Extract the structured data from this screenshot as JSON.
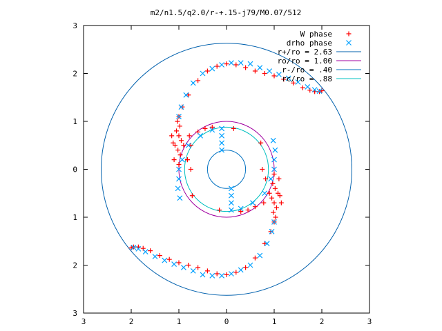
{
  "chart_data": {
    "type": "scatter",
    "title": "m2/n1.5/q2.0/r-+.15-j79/M0.07/512",
    "xlabel": "",
    "ylabel": "",
    "xlim": [
      -3,
      3
    ],
    "ylim": [
      -3,
      3
    ],
    "xticks": [
      -3,
      -2,
      -1,
      0,
      1,
      2,
      3
    ],
    "yticks": [
      -3,
      -2,
      -1,
      0,
      1,
      2,
      3
    ],
    "xtick_labels": [
      "3",
      "2",
      "1",
      "0",
      "1",
      "2",
      "3"
    ],
    "ytick_labels": [
      "3",
      "2",
      "1",
      "0",
      "1",
      "2",
      "3"
    ],
    "grid": false,
    "legend_position": "top-right",
    "series": [
      {
        "name": "W phase",
        "kind": "points",
        "marker": "plus",
        "color": "#ff0000",
        "x": [
          -1.0,
          -1.03,
          -0.98,
          -1.05,
          -1.0,
          -0.95,
          -1.08,
          -1.02,
          -0.97,
          -1.1,
          -1.0,
          -0.93,
          -0.8,
          -0.6,
          -0.4,
          -0.2,
          0.0,
          0.2,
          0.4,
          0.6,
          0.8,
          1.0,
          1.2,
          1.4,
          1.6,
          1.75,
          1.85,
          1.95,
          2.0,
          1.0,
          1.03,
          0.98,
          1.05,
          1.0,
          0.95,
          1.08,
          1.02,
          0.97,
          1.1,
          1.0,
          0.93,
          0.8,
          0.6,
          0.4,
          0.2,
          0.0,
          -0.2,
          -0.4,
          -0.6,
          -0.8,
          -1.0,
          -1.2,
          -1.4,
          -1.6,
          -1.75,
          -1.85,
          -1.95,
          -2.0,
          -0.82,
          -0.75,
          -0.6,
          -0.45,
          -0.3,
          0.15,
          0.72,
          0.82,
          0.9,
          0.78,
          0.75,
          0.6,
          0.45,
          0.3,
          -0.15,
          -0.72,
          -0.82,
          -0.9,
          -0.78,
          -0.75,
          -1.12,
          -1.15,
          1.12,
          1.15
        ],
        "y": [
          1.1,
          1.0,
          0.9,
          0.8,
          0.7,
          0.6,
          0.5,
          0.4,
          0.3,
          0.2,
          0.1,
          1.3,
          1.55,
          1.85,
          2.05,
          2.15,
          2.2,
          2.18,
          2.12,
          2.05,
          2.0,
          1.95,
          1.88,
          1.8,
          1.7,
          1.65,
          1.62,
          1.62,
          1.64,
          -1.1,
          -1.0,
          -0.9,
          -0.8,
          -0.7,
          -0.6,
          -0.5,
          -0.4,
          -0.3,
          -0.2,
          -0.1,
          -1.3,
          -1.55,
          -1.85,
          -2.05,
          -2.15,
          -2.2,
          -2.18,
          -2.12,
          -2.05,
          -2.0,
          -1.95,
          -1.88,
          -1.8,
          -1.7,
          -1.65,
          -1.62,
          -1.62,
          -1.64,
          0.2,
          0.5,
          0.78,
          0.85,
          0.88,
          0.85,
          0.55,
          -0.2,
          -0.5,
          -0.7,
          0.0,
          -0.78,
          -0.85,
          -0.88,
          -0.85,
          -0.55,
          0.2,
          0.5,
          0.7,
          0.0,
          0.55,
          0.7,
          -0.55,
          -0.7
        ]
      },
      {
        "name": "drho phase",
        "kind": "points",
        "marker": "cross",
        "color": "#00a0ff",
        "x": [
          -0.1,
          -0.3,
          -0.55,
          -0.8,
          -0.93,
          -1.0,
          -1.0,
          -1.02,
          -0.98,
          -1.0,
          -0.95,
          -0.85,
          -0.7,
          -0.5,
          -0.3,
          -0.1,
          0.1,
          0.3,
          0.5,
          0.7,
          0.9,
          1.1,
          1.3,
          1.5,
          1.7,
          1.85,
          1.95,
          0.1,
          0.3,
          0.55,
          0.8,
          0.93,
          1.0,
          1.0,
          1.02,
          0.98,
          1.0,
          0.95,
          0.85,
          0.7,
          0.5,
          0.3,
          0.1,
          -0.1,
          -0.3,
          -0.5,
          -0.7,
          -0.9,
          -1.1,
          -1.3,
          -1.5,
          -1.7,
          -1.85,
          -1.95,
          -0.1,
          -0.1,
          -0.1,
          0.1,
          0.1,
          0.1
        ],
        "y": [
          0.85,
          0.82,
          0.7,
          0.5,
          0.2,
          0.0,
          -0.2,
          -0.4,
          -0.6,
          1.1,
          1.3,
          1.55,
          1.8,
          2.0,
          2.1,
          2.18,
          2.22,
          2.22,
          2.2,
          2.12,
          2.05,
          1.98,
          1.9,
          1.82,
          1.72,
          1.66,
          1.63,
          -0.85,
          -0.82,
          -0.7,
          -0.5,
          -0.2,
          0.0,
          0.2,
          0.4,
          0.6,
          -1.1,
          -1.3,
          -1.55,
          -1.8,
          -2.0,
          -2.1,
          -2.18,
          -2.22,
          -2.22,
          -2.2,
          -2.12,
          -2.05,
          -1.98,
          -1.9,
          -1.82,
          -1.72,
          -1.66,
          -1.63,
          0.4,
          0.55,
          0.7,
          -0.4,
          -0.55,
          -0.7
        ]
      },
      {
        "name": "r+/ro = 2.63",
        "kind": "circle",
        "radius": 2.63,
        "color": "#0060ad"
      },
      {
        "name": "ro/ro = 1.00",
        "kind": "circle",
        "radius": 1.0,
        "color": "#a000a0"
      },
      {
        "name": "r-/ro = .40",
        "kind": "circle",
        "radius": 0.4,
        "color": "#0070c0"
      },
      {
        "name": "rc/ro = .88",
        "kind": "circle",
        "radius": 0.88,
        "color": "#00c0c0"
      }
    ]
  }
}
